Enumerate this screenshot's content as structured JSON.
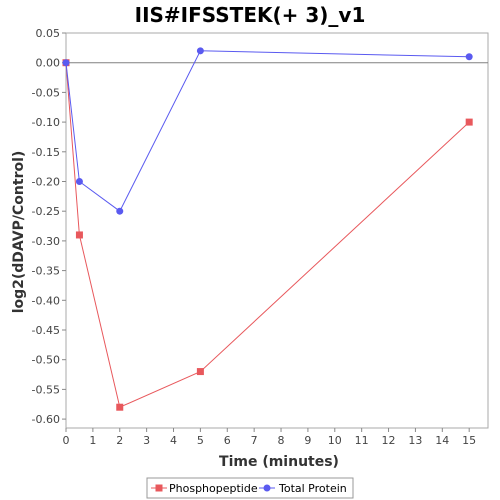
{
  "chart_data": {
    "type": "line",
    "title": "IIS#IFSSTEK(+ 3)_v1",
    "xlabel": "Time (minutes)",
    "ylabel": "log2(dDAVP/Control)",
    "xlim": [
      0,
      15.7
    ],
    "ylim": [
      -0.615,
      0.05
    ],
    "x_ticks": [
      "0",
      "1",
      "2",
      "3",
      "4",
      "5",
      "6",
      "7",
      "8",
      "9",
      "10",
      "11",
      "12",
      "13",
      "14",
      "15"
    ],
    "y_ticks": [
      "0.05",
      "0.00",
      "-0.05",
      "-0.10",
      "-0.15",
      "-0.20",
      "-0.25",
      "-0.30",
      "-0.35",
      "-0.40",
      "-0.45",
      "-0.50",
      "-0.55",
      "-0.60"
    ],
    "grid": false,
    "legend_position": "bottom",
    "series": [
      {
        "name": "Phosphopeptide",
        "color": "#e8585c",
        "marker": "square",
        "x": [
          0,
          0.5,
          2,
          5,
          15
        ],
        "y": [
          0.0,
          -0.29,
          -0.58,
          -0.52,
          -0.1
        ]
      },
      {
        "name": "Total Protein",
        "color": "#5a5af0",
        "marker": "circle",
        "x": [
          0,
          0.5,
          2,
          5,
          15
        ],
        "y": [
          0.0,
          -0.2,
          -0.25,
          0.02,
          0.01
        ]
      }
    ]
  }
}
